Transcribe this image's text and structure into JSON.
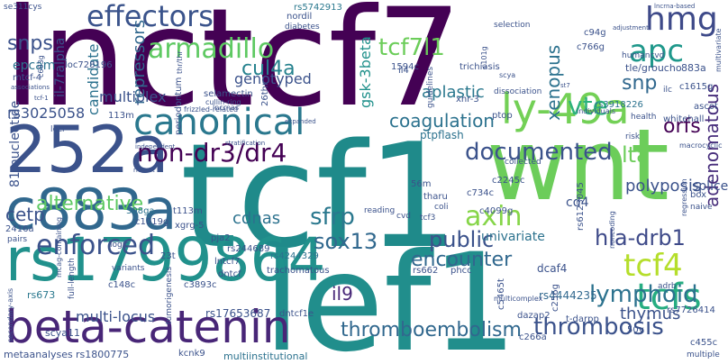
{
  "word_cloud": {
    "words": [
      {
        "text": "lnctcf7",
        "color": "#440154"
      },
      {
        "text": "tcf1",
        "color": "#1f8a8a"
      },
      {
        "text": "lef1",
        "color": "#218e8c"
      },
      {
        "text": "wnt",
        "color": "#6ccd5a"
      },
      {
        "text": "rs1799864",
        "color": "#21918c"
      },
      {
        "text": "252a",
        "color": "#3b528b"
      },
      {
        "text": "c883a",
        "color": "#31688e"
      },
      {
        "text": "beta-catenin",
        "color": "#482677"
      },
      {
        "text": "ly-49a",
        "color": "#73d056"
      },
      {
        "text": "canonical",
        "color": "#2a788e"
      },
      {
        "text": "hmg",
        "color": "#3e4a89"
      },
      {
        "text": "effectors",
        "color": "#3a538b"
      },
      {
        "text": "armadillo",
        "color": "#5ec962"
      },
      {
        "text": "apc",
        "color": "#1f988b"
      },
      {
        "text": "tcf4",
        "color": "#b5de2b"
      },
      {
        "text": "tcfs",
        "color": "#26ad81"
      },
      {
        "text": "enforced",
        "color": "#3b528b"
      },
      {
        "text": "axin",
        "color": "#86d549"
      },
      {
        "text": "vte",
        "color": "#2db27d"
      },
      {
        "text": "tcf7l1",
        "color": "#6ccd5a"
      },
      {
        "text": "non-dr3/dr4",
        "color": "#440154"
      },
      {
        "text": "documented",
        "color": "#3b528b"
      },
      {
        "text": "sfrp",
        "color": "#2a788e"
      },
      {
        "text": "sox13",
        "color": "#31688e"
      },
      {
        "text": "lymphoid",
        "color": "#2c728e"
      },
      {
        "text": "thrombosis",
        "color": "#3b528b"
      },
      {
        "text": "thromboembolism",
        "color": "#31688e"
      },
      {
        "text": "hla-drb1",
        "color": "#3e4a89"
      },
      {
        "text": "coagulation",
        "color": "#2c728e"
      },
      {
        "text": "snps",
        "color": "#3b528b"
      },
      {
        "text": "cul4a",
        "color": "#26828e"
      },
      {
        "text": "public",
        "color": "#3b528b"
      },
      {
        "text": "encounter",
        "color": "#31688e"
      },
      {
        "text": "xenopus",
        "color": "#2c728e"
      },
      {
        "text": "alternative",
        "color": "#5ec962"
      },
      {
        "text": "lta",
        "color": "#6ccd5a"
      },
      {
        "text": "orfs",
        "color": "#440154"
      },
      {
        "text": "snp",
        "color": "#31688e"
      },
      {
        "text": "il9",
        "color": "#482878"
      },
      {
        "text": "cetp",
        "color": "#3b528b"
      },
      {
        "text": "cdnas",
        "color": "#2c728e"
      },
      {
        "text": "thymus",
        "color": "#3b528b"
      },
      {
        "text": "adenomatous",
        "color": "#472d7b"
      },
      {
        "text": "candidate",
        "color": "#2c728e"
      },
      {
        "text": "multiplex",
        "color": "#3b528b"
      },
      {
        "text": "repressors",
        "color": "#31688e"
      },
      {
        "text": "81-nucleotide",
        "color": "#3b528b"
      },
      {
        "text": "polyposis",
        "color": "#3b528b"
      },
      {
        "text": "aplastic",
        "color": "#2a788e"
      },
      {
        "text": "genotyped",
        "color": "#3b528b"
      },
      {
        "text": "gsk-3beta",
        "color": "#21918c"
      },
      {
        "text": "rs3025058",
        "color": "#3b528b"
      },
      {
        "text": "il-7ralpha",
        "color": "#3b528b"
      },
      {
        "text": "epcam",
        "color": "#2c728e"
      },
      {
        "text": "multi-locus",
        "color": "#3b528b"
      },
      {
        "text": "univariate",
        "color": "#2c728e"
      },
      {
        "text": "dcaf4",
        "color": "#3b528b"
      },
      {
        "text": "splice",
        "color": "#3b528b"
      },
      {
        "text": "ptpflash",
        "color": "#2c728e"
      },
      {
        "text": "cd4",
        "color": "#3b528b"
      },
      {
        "text": "rs4444235",
        "color": "#31688e"
      },
      {
        "text": "rs17653687",
        "color": "#3b528b"
      },
      {
        "text": "metaanalyses",
        "color": "#3b528b"
      },
      {
        "text": "rs1800775",
        "color": "#3b528b"
      },
      {
        "text": "multiinstitutional",
        "color": "#2c728e"
      },
      {
        "text": "scya11",
        "color": "#3b528b"
      },
      {
        "text": "rs673",
        "color": "#2a788e"
      },
      {
        "text": "tle/groucho",
        "color": "#3b528b"
      },
      {
        "text": "883a",
        "color": "#3b528b"
      },
      {
        "text": "ascot",
        "color": "#3b528b"
      },
      {
        "text": "rs3918226",
        "color": "#2c728e"
      },
      {
        "text": "rs5742913",
        "color": "#2a788e"
      },
      {
        "text": "rs4244329",
        "color": "#2c728e"
      },
      {
        "text": "se311cys",
        "color": "#3b528b"
      },
      {
        "text": "mtcf-4",
        "color": "#3b528b"
      },
      {
        "text": "loc728196",
        "color": "#3b528b"
      },
      {
        "text": "selamectin",
        "color": "#3b528b"
      },
      {
        "text": "308ga",
        "color": "#2c728e"
      },
      {
        "text": "t113m",
        "color": "#3b528b"
      },
      {
        "text": "xgrg-5",
        "color": "#3b528b"
      },
      {
        "text": "pja2",
        "color": "#3b528b"
      },
      {
        "text": "rs244689",
        "color": "#3b528b"
      },
      {
        "text": "c1019g",
        "color": "#3b528b"
      },
      {
        "text": "lntcf7",
        "color": "#3b528b"
      },
      {
        "text": "dntcf",
        "color": "#3b528b"
      },
      {
        "text": "c3893c",
        "color": "#3b528b"
      },
      {
        "text": "trachomatous",
        "color": "#3b528b"
      },
      {
        "text": "c734c",
        "color": "#3b528b"
      },
      {
        "text": "c4099g",
        "color": "#3b528b"
      },
      {
        "text": "rs662",
        "color": "#3b528b"
      },
      {
        "text": "phcc",
        "color": "#3b528b"
      },
      {
        "text": "c2245c",
        "color": "#3b528b"
      },
      {
        "text": "56m",
        "color": "#3b528b"
      },
      {
        "text": "tharu",
        "color": "#3b528b"
      },
      {
        "text": "rs6123045",
        "color": "#3b528b"
      },
      {
        "text": "c5465t",
        "color": "#3b528b"
      },
      {
        "text": "dazap2",
        "color": "#3b528b"
      },
      {
        "text": "c256g",
        "color": "#3b528b"
      },
      {
        "text": "t-darpp",
        "color": "#3b528b"
      },
      {
        "text": "c266a",
        "color": "#3b528b"
      },
      {
        "text": "50v",
        "color": "#3b528b"
      },
      {
        "text": "rs7726414",
        "color": "#3b528b"
      },
      {
        "text": "c455c",
        "color": "#3b528b"
      },
      {
        "text": "c148c",
        "color": "#3b528b"
      },
      {
        "text": "dntcf1e",
        "color": "#3b528b"
      },
      {
        "text": "kcnk9",
        "color": "#3b528b"
      },
      {
        "text": "2416a",
        "color": "#3b528b"
      },
      {
        "text": "c766g",
        "color": "#3b528b"
      },
      {
        "text": "c94g",
        "color": "#3b528b"
      },
      {
        "text": "c1615g",
        "color": "#3b528b"
      },
      {
        "text": "ptop",
        "color": "#3b528b"
      },
      {
        "text": "xnr-3",
        "color": "#3b528b"
      },
      {
        "text": "trichiasis",
        "color": "#3b528b"
      },
      {
        "text": "1594c",
        "color": "#3b528b"
      },
      {
        "text": "26thr",
        "color": "#3b528b"
      },
      {
        "text": "periodontum",
        "color": "#3b528b"
      },
      {
        "text": "nordil",
        "color": "#3b528b"
      },
      {
        "text": "diabetes",
        "color": "#3b528b"
      },
      {
        "text": "113m",
        "color": "#3b528b"
      },
      {
        "text": "23t",
        "color": "#3b528b"
      },
      {
        "text": "il4",
        "color": "#3b528b"
      },
      {
        "text": "cvd",
        "color": "#3b528b"
      },
      {
        "text": "tcf3",
        "color": "#3b528b"
      },
      {
        "text": "coli",
        "color": "#3b528b"
      },
      {
        "text": "whitehall",
        "color": "#3b528b"
      },
      {
        "text": "box",
        "color": "#3b528b"
      },
      {
        "text": "naive",
        "color": "#3b528b"
      },
      {
        "text": "ilc",
        "color": "#3b528b"
      },
      {
        "text": "health",
        "color": "#3b528b"
      },
      {
        "text": "logic",
        "color": "#3b528b"
      },
      {
        "text": "reading",
        "color": "#3b528b"
      },
      {
        "text": "collected",
        "color": "#3b528b"
      },
      {
        "text": "risk",
        "color": "#3b528b"
      },
      {
        "text": "pairs",
        "color": "#3b528b"
      },
      {
        "text": "loci",
        "color": "#3b528b"
      },
      {
        "text": "variants",
        "color": "#3b528b"
      },
      {
        "text": "guidelines",
        "color": "#3b528b"
      },
      {
        "text": "dissociation",
        "color": "#3b528b"
      },
      {
        "text": "selection",
        "color": "#3b528b"
      },
      {
        "text": "humancvd",
        "color": "#3b528b"
      },
      {
        "text": "macrocyclic",
        "color": "#3b528b"
      },
      {
        "text": "frizzled-related",
        "color": "#3b528b"
      },
      {
        "text": "multiple",
        "color": "#3b528b"
      },
      {
        "text": "adrb",
        "color": "#3b528b"
      },
      {
        "text": "tumorigenesis",
        "color": "#3b528b"
      },
      {
        "text": "full-length",
        "color": "#3b528b"
      },
      {
        "text": "lncrnas",
        "color": "#3b528b"
      },
      {
        "text": "scya",
        "color": "#3b528b"
      },
      {
        "text": "regression",
        "color": "#3b528b"
      },
      {
        "text": "noncoding",
        "color": "#3b528b"
      },
      {
        "text": "multicomplex",
        "color": "#3b528b"
      },
      {
        "text": "cullin-ring",
        "color": "#3b528b"
      },
      {
        "text": "thr/thr",
        "color": "#3b528b"
      },
      {
        "text": "individuals",
        "color": "#3b528b"
      },
      {
        "text": "mcag-containing",
        "color": "#3b528b"
      },
      {
        "text": "secondary-axis",
        "color": "#3b528b"
      },
      {
        "text": "expanded",
        "color": "#3b528b"
      },
      {
        "text": "stratification",
        "color": "#3b528b"
      },
      {
        "text": "independent",
        "color": "#3b528b"
      },
      {
        "text": "richest",
        "color": "#3b528b"
      },
      {
        "text": "adjustment",
        "color": "#3b528b"
      },
      {
        "text": "multivariate",
        "color": "#3b528b"
      },
      {
        "text": "st7",
        "color": "#3b528b"
      },
      {
        "text": "c101g",
        "color": "#3b528b"
      },
      {
        "text": "c663g",
        "color": "#3b528b"
      },
      {
        "text": "associations",
        "color": "#3b528b"
      },
      {
        "text": "tcf-1",
        "color": "#3b528b"
      },
      {
        "text": "lncrna-based",
        "color": "#3b528b"
      }
    ]
  }
}
